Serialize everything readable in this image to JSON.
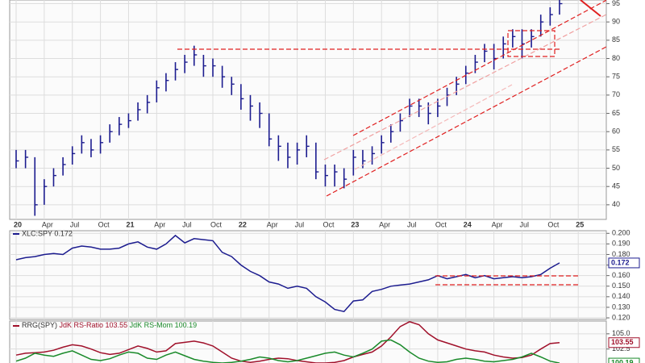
{
  "chart_data": [
    {
      "type": "ohlc",
      "categories": [
        "20",
        null,
        null,
        "Apr",
        null,
        null,
        "Jul",
        null,
        null,
        "Oct",
        null,
        null,
        "21",
        null,
        null,
        "Apr",
        null,
        null,
        "Jul",
        null,
        null,
        "Oct",
        null,
        null,
        "22",
        null,
        null,
        "Apr",
        null,
        null,
        "Jul",
        null,
        null,
        "Oct",
        null,
        null,
        "23",
        null,
        null,
        "Apr",
        null,
        null,
        "Jul",
        null,
        null,
        "Oct",
        null,
        null,
        "24",
        null,
        null,
        "Apr",
        null,
        null,
        "Jul",
        null,
        null,
        "Oct",
        null,
        null,
        "25",
        null
      ],
      "close": [
        52,
        53,
        40,
        45,
        48,
        51,
        54,
        57,
        55,
        57,
        60,
        62,
        63,
        66,
        68,
        72,
        74,
        77,
        79,
        81,
        78,
        78,
        75,
        73,
        69,
        67,
        65,
        58,
        56,
        53,
        55,
        56,
        49,
        48,
        49,
        47,
        53,
        52,
        54,
        57,
        60,
        63,
        67,
        67,
        65,
        67,
        70,
        73,
        76,
        79,
        82,
        80,
        84,
        86,
        84,
        86,
        90,
        92,
        95,
        null,
        null,
        null
      ],
      "high": [
        55,
        55,
        53,
        47,
        50,
        53,
        56,
        59,
        58,
        59,
        62,
        64,
        65,
        68,
        70,
        74,
        76,
        79,
        81,
        83.5,
        81,
        80,
        78,
        75,
        73,
        70,
        68,
        65,
        59,
        57,
        57,
        59,
        57,
        51,
        51,
        50,
        55,
        55,
        56,
        59,
        62,
        65,
        69,
        69,
        68,
        69,
        72,
        75,
        78,
        81,
        84,
        84,
        86,
        88,
        88,
        88,
        92,
        94,
        96,
        null,
        null,
        null
      ],
      "low": [
        50,
        50,
        37,
        40,
        45,
        48,
        51,
        54,
        53,
        54,
        57,
        59,
        61,
        63,
        65,
        68,
        71,
        74,
        76,
        78,
        75,
        75,
        72,
        70,
        66,
        63,
        61,
        56,
        52,
        50,
        51,
        53,
        47,
        45,
        45,
        44.5,
        48,
        50,
        51,
        54,
        57,
        60,
        64,
        64,
        62,
        64,
        67,
        70,
        73,
        76,
        79,
        77,
        80,
        83,
        80,
        83,
        86,
        89,
        92,
        null,
        null,
        null
      ],
      "color": "#1c1c8f",
      "ylim": [
        36,
        96
      ],
      "yticks": [
        40,
        45,
        50,
        55,
        60,
        65,
        70,
        75,
        80,
        85,
        90,
        95
      ],
      "grid": true
    },
    {
      "type": "line",
      "title": "XLC:SPY 0.172",
      "series": [
        {
          "name": "XLC:SPY",
          "color": "#1c1c8f",
          "values": [
            0.175,
            0.177,
            0.178,
            0.18,
            0.181,
            0.18,
            0.186,
            0.188,
            0.187,
            0.185,
            0.185,
            0.186,
            0.19,
            0.192,
            0.187,
            0.185,
            0.19,
            0.198,
            0.191,
            0.195,
            0.194,
            0.193,
            0.182,
            0.178,
            0.17,
            0.164,
            0.16,
            0.154,
            0.152,
            0.148,
            0.15,
            0.148,
            0.14,
            0.135,
            0.128,
            0.126,
            0.136,
            0.137,
            0.145,
            0.147,
            0.15,
            0.151,
            0.152,
            0.154,
            0.156,
            0.16,
            0.157,
            0.159,
            0.161,
            0.158,
            0.16,
            0.157,
            0.158,
            0.159,
            0.158,
            0.159,
            0.161,
            0.167,
            0.172,
            null,
            null,
            null
          ]
        }
      ],
      "ylim": [
        0.1185,
        0.2025
      ],
      "yticks": [
        {
          "value": 0.12,
          "label": "0.120"
        },
        {
          "value": 0.13,
          "label": "0.130"
        },
        {
          "value": 0.14,
          "label": "0.140"
        },
        {
          "value": 0.15,
          "label": "0.150"
        },
        {
          "value": 0.16,
          "label": "0.160"
        },
        {
          "value": 0.17,
          "label": "0.170"
        },
        {
          "value": 0.18,
          "label": "0.180"
        },
        {
          "value": 0.19,
          "label": "0.190"
        },
        {
          "value": 0.2,
          "label": "0.200"
        }
      ],
      "grid": true
    },
    {
      "type": "line",
      "title": "RRG(SPY)",
      "series": [
        {
          "name": "JdK RS-Ratio 103.55",
          "color": "#a0102a",
          "values": [
            101.5,
            101.8,
            101.9,
            102.0,
            102.3,
            102.8,
            103.2,
            103.0,
            102.5,
            101.9,
            101.6,
            101.8,
            102.4,
            103.0,
            102.6,
            102.0,
            102.2,
            103.4,
            103.6,
            103.8,
            103.5,
            103.0,
            102.0,
            101.0,
            100.5,
            100.3,
            100.5,
            100.8,
            101.0,
            100.9,
            100.6,
            100.4,
            100.2,
            100.2,
            100.3,
            100.6,
            101.2,
            101.6,
            102.0,
            103.0,
            104.5,
            106.2,
            107.0,
            106.5,
            105.0,
            104.0,
            103.5,
            103.0,
            102.5,
            102.2,
            102.0,
            101.5,
            101.2,
            101.0,
            101.1,
            101.5,
            102.5,
            103.4,
            103.55,
            null,
            null,
            null
          ]
        },
        {
          "name": "JdK RS-Mom 100.19",
          "color": "#1a8a2a",
          "values": [
            100.5,
            101.0,
            101.8,
            101.5,
            101.3,
            101.8,
            102.2,
            101.5,
            100.8,
            100.6,
            100.9,
            101.5,
            102.0,
            101.8,
            101.0,
            100.8,
            101.5,
            102.0,
            101.4,
            100.8,
            100.5,
            100.3,
            100.2,
            100.3,
            100.5,
            100.8,
            101.2,
            101.0,
            100.6,
            100.4,
            100.6,
            101.0,
            101.4,
            101.8,
            102.0,
            101.5,
            101.2,
            101.8,
            102.5,
            103.8,
            104.0,
            103.2,
            102.0,
            101.0,
            100.5,
            100.3,
            100.4,
            100.8,
            101.0,
            100.8,
            100.5,
            100.4,
            100.6,
            100.8,
            101.2,
            101.8,
            101.2,
            100.5,
            100.19,
            null,
            null,
            null
          ]
        }
      ],
      "ylim": [
        100.2,
        107.1
      ],
      "yticks": [
        102.5,
        {
          "value": 105,
          "label": "105.0"
        }
      ],
      "grid": true
    }
  ]
}
